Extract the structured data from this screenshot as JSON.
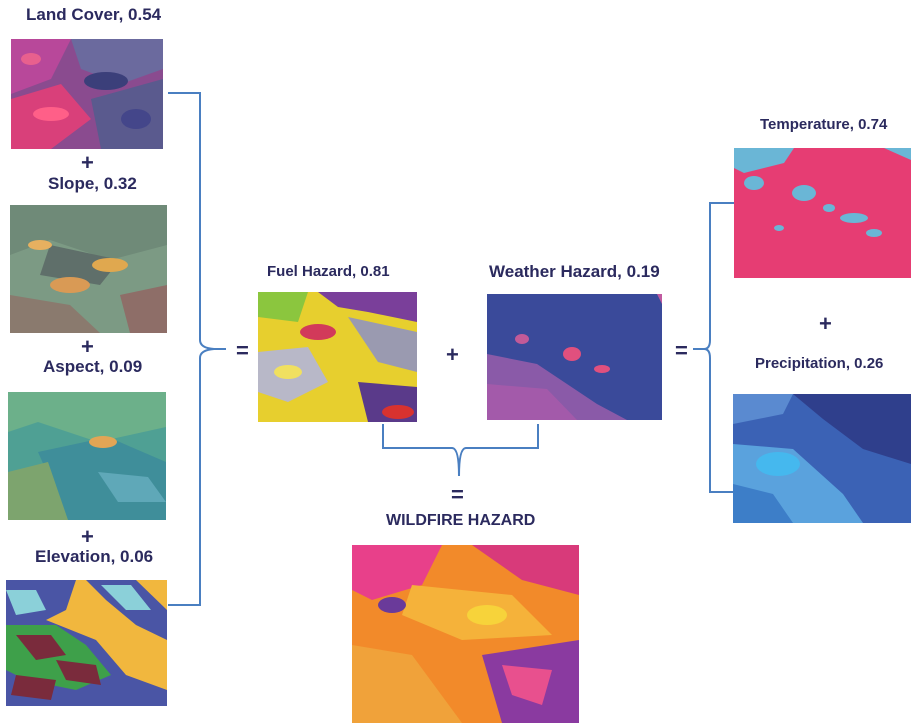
{
  "inputs": {
    "land_cover": "Land Cover, 0.54",
    "slope": "Slope, 0.32",
    "aspect": "Aspect, 0.09",
    "elevation": "Elevation, 0.06"
  },
  "hazards": {
    "fuel": "Fuel Hazard, 0.81",
    "weather": "Weather Hazard, 0.19",
    "result": "WILDFIRE HAZARD"
  },
  "weather_inputs": {
    "temperature": "Temperature, 0.74",
    "precipitation": "Precipitation, 0.26"
  },
  "operators": {
    "plus": "+",
    "equals": "="
  },
  "colors": {
    "text": "#2b2a5e",
    "connector": "#4a7fc1"
  }
}
